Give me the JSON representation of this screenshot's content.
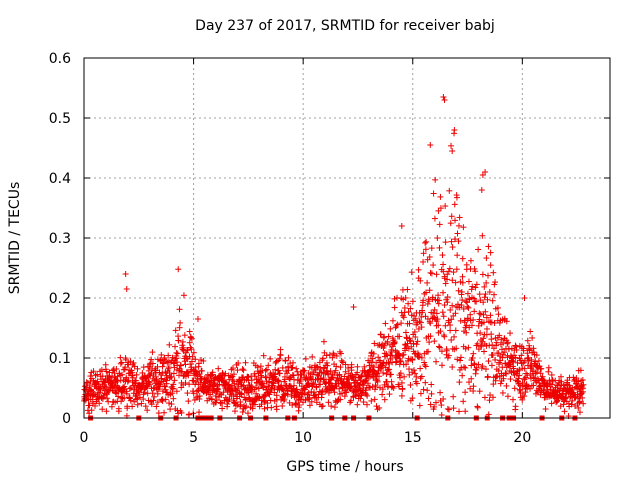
{
  "chart_data": {
    "type": "scatter",
    "title": "Day 237 of 2017, SRMTID for receiver babj",
    "xlabel": "GPS time / hours",
    "ylabel": "SRMTID / TECUs",
    "xlim": [
      0,
      24
    ],
    "ylim": [
      0,
      0.6
    ],
    "x_ticks": [
      0,
      5,
      10,
      15,
      20
    ],
    "x_tick_labels": [
      "0",
      "5",
      "10",
      "15",
      "20"
    ],
    "y_ticks": [
      0,
      0.1,
      0.2,
      0.3,
      0.4,
      0.5,
      0.6
    ],
    "y_tick_labels": [
      "0",
      "0.1",
      "0.2",
      "0.3",
      "0.4",
      "0.5",
      "0.6"
    ],
    "grid": true,
    "marker": "plus",
    "color": "#ee0000",
    "envelope": {
      "description": "approximate SRMTID level (TECU) vs GPS hour",
      "hours": [
        0,
        1,
        2,
        2.5,
        3,
        4,
        4.5,
        5,
        5.5,
        6,
        7,
        8,
        9,
        10,
        11,
        12,
        12.5,
        13,
        14,
        14.5,
        15,
        15.5,
        16,
        16.5,
        17,
        17.5,
        18,
        18.5,
        19,
        20,
        20.5,
        21,
        22,
        22.8
      ],
      "median": [
        0.04,
        0.05,
        0.06,
        0.05,
        0.06,
        0.07,
        0.1,
        0.08,
        0.05,
        0.05,
        0.05,
        0.05,
        0.06,
        0.05,
        0.07,
        0.06,
        0.05,
        0.07,
        0.1,
        0.13,
        0.12,
        0.15,
        0.18,
        0.17,
        0.22,
        0.16,
        0.14,
        0.18,
        0.1,
        0.08,
        0.09,
        0.05,
        0.04,
        0.05
      ],
      "spread": [
        0.03,
        0.04,
        0.06,
        0.03,
        0.04,
        0.06,
        0.1,
        0.07,
        0.03,
        0.03,
        0.04,
        0.05,
        0.05,
        0.04,
        0.05,
        0.04,
        0.03,
        0.05,
        0.08,
        0.11,
        0.1,
        0.15,
        0.25,
        0.2,
        0.28,
        0.12,
        0.15,
        0.18,
        0.07,
        0.06,
        0.06,
        0.03,
        0.03,
        0.04
      ]
    },
    "outliers": [
      {
        "x": 1.9,
        "y": 0.24
      },
      {
        "x": 1.95,
        "y": 0.215
      },
      {
        "x": 4.3,
        "y": 0.248
      },
      {
        "x": 5.2,
        "y": 0.165
      },
      {
        "x": 14.5,
        "y": 0.32
      },
      {
        "x": 15.8,
        "y": 0.455
      },
      {
        "x": 16.4,
        "y": 0.535
      },
      {
        "x": 16.45,
        "y": 0.53
      },
      {
        "x": 16.9,
        "y": 0.48
      },
      {
        "x": 16.8,
        "y": 0.445
      },
      {
        "x": 18.2,
        "y": 0.405
      },
      {
        "x": 18.3,
        "y": 0.41
      },
      {
        "x": 18.15,
        "y": 0.38
      },
      {
        "x": 20.1,
        "y": 0.2
      },
      {
        "x": 12.3,
        "y": 0.185
      }
    ],
    "zero_markers_hours": [
      0.3,
      2.5,
      3.5,
      4.2,
      5.2,
      5.4,
      5.6,
      5.8,
      6.2,
      7.1,
      7.6,
      8.3,
      9.3,
      9.6,
      11.3,
      11.9,
      12.3,
      13.0,
      15.2,
      16.6,
      17.9,
      18.4,
      19.1,
      19.4,
      19.6,
      20.9,
      21.8,
      22.4
    ],
    "data_hours_range": [
      0,
      22.8
    ]
  }
}
